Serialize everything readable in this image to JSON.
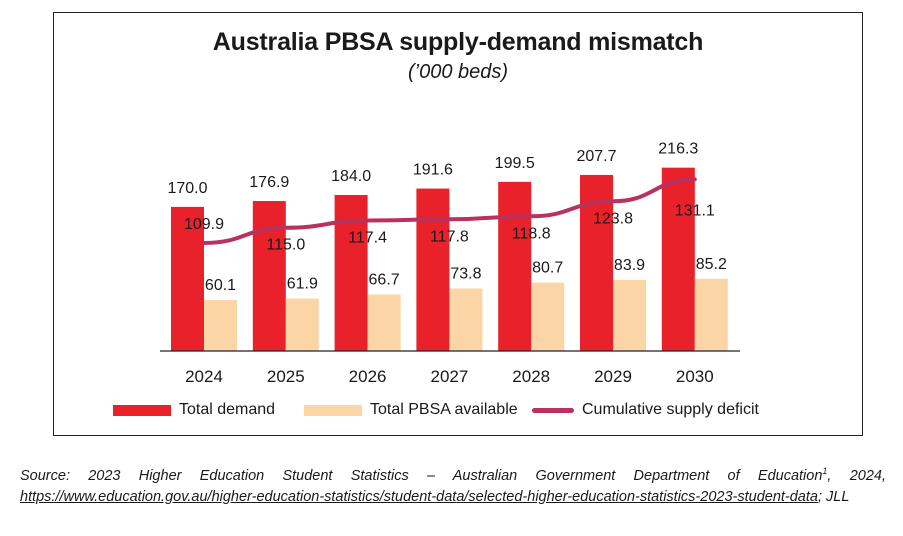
{
  "colors": {
    "demand": "#e8212a",
    "available": "#fbd5a6",
    "deficit": "#b8325e",
    "axis": "#222222"
  },
  "chart_data": {
    "type": "bar",
    "title": "Australia PBSA supply-demand mismatch",
    "subtitle": "(’000 beds)",
    "categories": [
      "2024",
      "2025",
      "2026",
      "2027",
      "2028",
      "2029",
      "2030"
    ],
    "series": [
      {
        "name": "Total demand",
        "type": "bar",
        "values": [
          170.0,
          176.9,
          184.0,
          191.6,
          199.5,
          207.7,
          216.3
        ]
      },
      {
        "name": "Total PBSA available",
        "type": "bar",
        "values": [
          60.1,
          61.9,
          66.7,
          73.8,
          80.7,
          83.9,
          85.2
        ]
      },
      {
        "name": "Cumulative supply deficit",
        "type": "line",
        "values": [
          109.9,
          115.0,
          117.4,
          117.8,
          118.8,
          123.8,
          131.1
        ]
      }
    ],
    "value_labels": {
      "demand": [
        "170.0",
        "176.9",
        "184.0",
        "191.6",
        "199.5",
        "207.7",
        "216.3"
      ],
      "available": [
        "60.1",
        "61.9",
        "66.7",
        "73.8",
        "80.7",
        "83.9",
        "85.2"
      ],
      "deficit": [
        "109.9",
        "115.0",
        "117.4",
        "117.8",
        "118.8",
        "123.8",
        "131.1"
      ]
    },
    "xlabel": "",
    "ylabel": "",
    "ylim": [
      0,
      240
    ],
    "grid": false,
    "legend_position": "bottom"
  },
  "source": {
    "prefix": "Source: 2023 Higher Education Student Statistics – Australian Government Department of Education",
    "footnote": "1",
    "year": ", 2024,",
    "url": "https://www.education.gov.au/higher-education-statistics/student-data/selected-higher-education-statistics-2023-student-data",
    "suffix": "; JLL"
  }
}
